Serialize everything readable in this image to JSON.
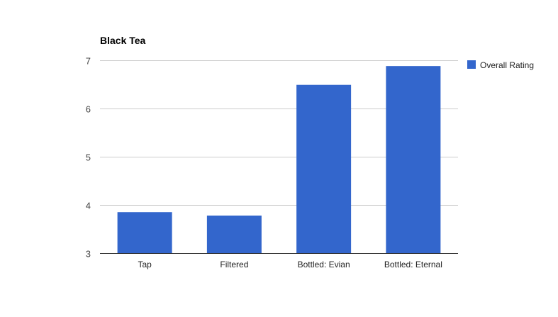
{
  "chart_data": {
    "type": "bar",
    "title": "Black Tea",
    "xlabel": "",
    "ylabel": "",
    "categories": [
      "Tap",
      "Filtered",
      "Bottled: Evian",
      "Bottled: Eternal"
    ],
    "series": [
      {
        "name": "Overall Rating",
        "color": "#3366cc",
        "values": [
          3.85,
          3.78,
          6.49,
          6.88
        ]
      }
    ],
    "ylim": [
      3,
      7
    ],
    "yticks": [
      3,
      4,
      5,
      6,
      7
    ],
    "grid": true,
    "legend": "right"
  }
}
